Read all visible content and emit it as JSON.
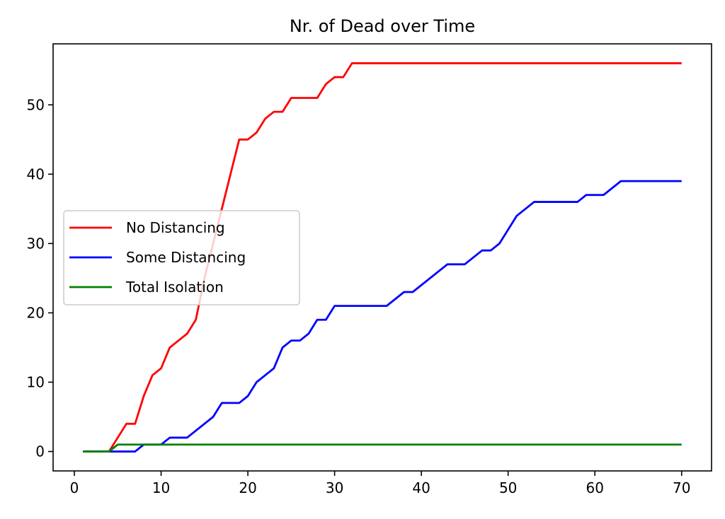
{
  "chart_data": {
    "type": "line",
    "title": "Nr. of Dead over Time",
    "xlabel": "",
    "ylabel": "",
    "xlim": [
      -2.45,
      73.45
    ],
    "ylim": [
      -2.8,
      58.8
    ],
    "xticks": [
      0,
      10,
      20,
      30,
      40,
      50,
      60,
      70
    ],
    "yticks": [
      0,
      10,
      20,
      30,
      40,
      50
    ],
    "grid": false,
    "legend_position": "center-left",
    "series": [
      {
        "name": "No Distancing",
        "color": "#ff0000",
        "x": [
          1,
          4,
          6,
          7,
          8,
          9,
          10,
          11,
          12,
          13,
          14,
          15,
          16,
          17,
          18,
          19,
          20,
          21,
          22,
          23,
          24,
          25,
          28,
          29,
          30,
          31,
          32,
          70
        ],
        "y": [
          0,
          0,
          4,
          4,
          8,
          11,
          12,
          15,
          16,
          17,
          19,
          25,
          30,
          35,
          40,
          45,
          45,
          46,
          48,
          49,
          49,
          51,
          51,
          53,
          54,
          54,
          56,
          56
        ]
      },
      {
        "name": "Some Distancing",
        "color": "#0000ff",
        "x": [
          1,
          7,
          8,
          10,
          11,
          13,
          16,
          17,
          19,
          20,
          21,
          23,
          24,
          25,
          26,
          27,
          28,
          29,
          30,
          36,
          38,
          39,
          43,
          45,
          47,
          48,
          49,
          51,
          53,
          58,
          59,
          61,
          63,
          70
        ],
        "y": [
          0,
          0,
          1,
          1,
          2,
          2,
          5,
          7,
          7,
          8,
          10,
          12,
          15,
          16,
          16,
          17,
          19,
          19,
          21,
          21,
          23,
          23,
          27,
          27,
          29,
          29,
          30,
          34,
          36,
          36,
          37,
          37,
          39,
          39
        ]
      },
      {
        "name": "Total Isolation",
        "color": "#008000",
        "x": [
          1,
          4,
          5,
          70
        ],
        "y": [
          0,
          0,
          1,
          1
        ]
      }
    ]
  }
}
